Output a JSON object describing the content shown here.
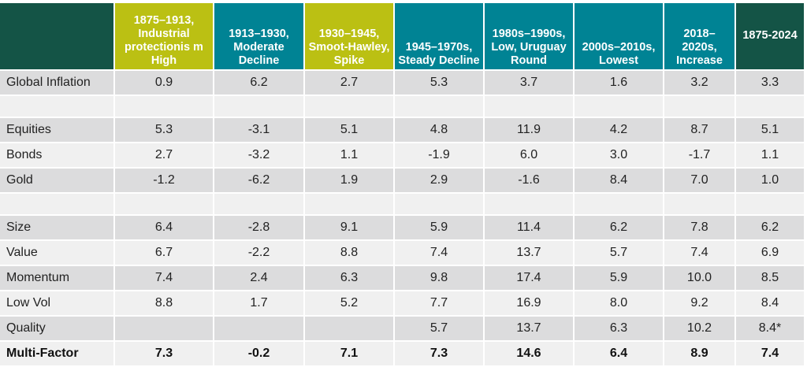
{
  "table": {
    "headers": [
      {
        "label": "",
        "style": "corner"
      },
      {
        "label": "1875–1913, Industrial protectionis m High",
        "style": "olive"
      },
      {
        "label": "1913–1930, Moderate Decline",
        "style": "teal"
      },
      {
        "label": "1930–1945, Smoot-Hawley, Spike",
        "style": "olive"
      },
      {
        "label": "1945–1970s, Steady Decline",
        "style": "teal"
      },
      {
        "label": "1980s–1990s, Low, Uruguay Round",
        "style": "teal"
      },
      {
        "label": "2000s–2010s, Lowest",
        "style": "teal"
      },
      {
        "label": "2018–2020s, Increase",
        "style": "teal"
      },
      {
        "label": "1875-2024",
        "style": "dark"
      }
    ],
    "rows": [
      {
        "label": "Global Inflation",
        "values": [
          "0.9",
          "6.2",
          "2.7",
          "5.3",
          "3.7",
          "1.6",
          "3.2",
          "3.3"
        ],
        "shade": "shade"
      },
      {
        "label": "",
        "values": [
          "",
          "",
          "",
          "",
          "",
          "",
          "",
          ""
        ],
        "shade": "light"
      },
      {
        "label": "Equities",
        "values": [
          "5.3",
          "-3.1",
          "5.1",
          "4.8",
          "11.9",
          "4.2",
          "8.7",
          "5.1"
        ],
        "shade": "shade"
      },
      {
        "label": "Bonds",
        "values": [
          "2.7",
          "-3.2",
          "1.1",
          "-1.9",
          "6.0",
          "3.0",
          "-1.7",
          "1.1"
        ],
        "shade": "light"
      },
      {
        "label": "Gold",
        "values": [
          "-1.2",
          "-6.2",
          "1.9",
          "2.9",
          "-1.6",
          "8.4",
          "7.0",
          "1.0"
        ],
        "shade": "shade"
      },
      {
        "label": "",
        "values": [
          "",
          "",
          "",
          "",
          "",
          "",
          "",
          ""
        ],
        "shade": "light"
      },
      {
        "label": "Size",
        "values": [
          "6.4",
          "-2.8",
          "9.1",
          "5.9",
          "11.4",
          "6.2",
          "7.8",
          "6.2"
        ],
        "shade": "shade"
      },
      {
        "label": "Value",
        "values": [
          "6.7",
          "-2.2",
          "8.8",
          "7.4",
          "13.7",
          "5.7",
          "7.4",
          "6.9"
        ],
        "shade": "light"
      },
      {
        "label": "Momentum",
        "values": [
          "7.4",
          "2.4",
          "6.3",
          "9.8",
          "17.4",
          "5.9",
          "10.0",
          "8.5"
        ],
        "shade": "shade"
      },
      {
        "label": "Low Vol",
        "values": [
          "8.8",
          "1.7",
          "5.2",
          "7.7",
          "16.9",
          "8.0",
          "9.2",
          "8.4"
        ],
        "shade": "light"
      },
      {
        "label": "Quality",
        "values": [
          "",
          "",
          "",
          "5.7",
          "13.7",
          "6.3",
          "10.2",
          "8.4*"
        ],
        "shade": "shade"
      },
      {
        "label": "Multi-Factor",
        "values": [
          "7.3",
          "-0.2",
          "7.1",
          "7.3",
          "14.6",
          "6.4",
          "8.9",
          "7.4"
        ],
        "shade": "light",
        "bold": true
      }
    ]
  },
  "colors": {
    "corner": "#145446",
    "olive": "#bbc013",
    "teal": "#008394",
    "row_shade": "#dcdcdd",
    "row_light": "#f0f0f0"
  }
}
